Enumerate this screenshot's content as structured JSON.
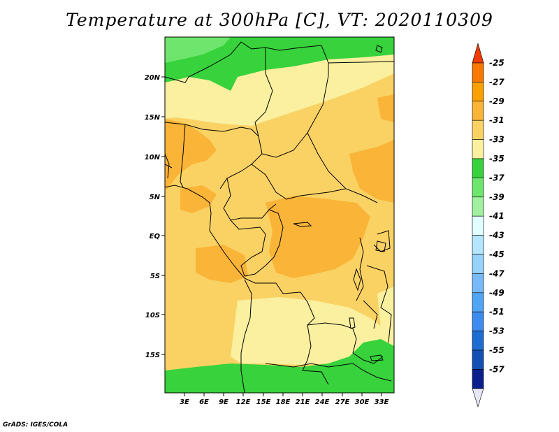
{
  "title": "Temperature at 300hPa [C], VT: 2020110309",
  "credit": "GrADS: IGES/COLA",
  "map": {
    "lat_labels": [
      "20N",
      "15N",
      "10N",
      "5N",
      "EQ",
      "5S",
      "10S",
      "15S"
    ],
    "lon_labels": [
      "3E",
      "6E",
      "9E",
      "12E",
      "15E",
      "18E",
      "21E",
      "24E",
      "27E",
      "30E",
      "33E"
    ]
  },
  "colorbar": {
    "labels": [
      "-25",
      "-27",
      "-29",
      "-31",
      "-33",
      "-35",
      "-37",
      "-39",
      "-41",
      "-43",
      "-45",
      "-47",
      "-49",
      "-51",
      "-53",
      "-55",
      "-57"
    ],
    "colors": [
      "#f03c00",
      "#f87800",
      "#faa000",
      "#fab437",
      "#fad264",
      "#faf0a0",
      "#37d23c",
      "#6ee66e",
      "#a0f0a0",
      "#e1ffff",
      "#b4e6ff",
      "#96d2fa",
      "#78b9fa",
      "#50a5f5",
      "#3c8cf0",
      "#1e6ed2",
      "#1450b4",
      "#0a1e8c",
      "#e6e6f5"
    ]
  }
}
